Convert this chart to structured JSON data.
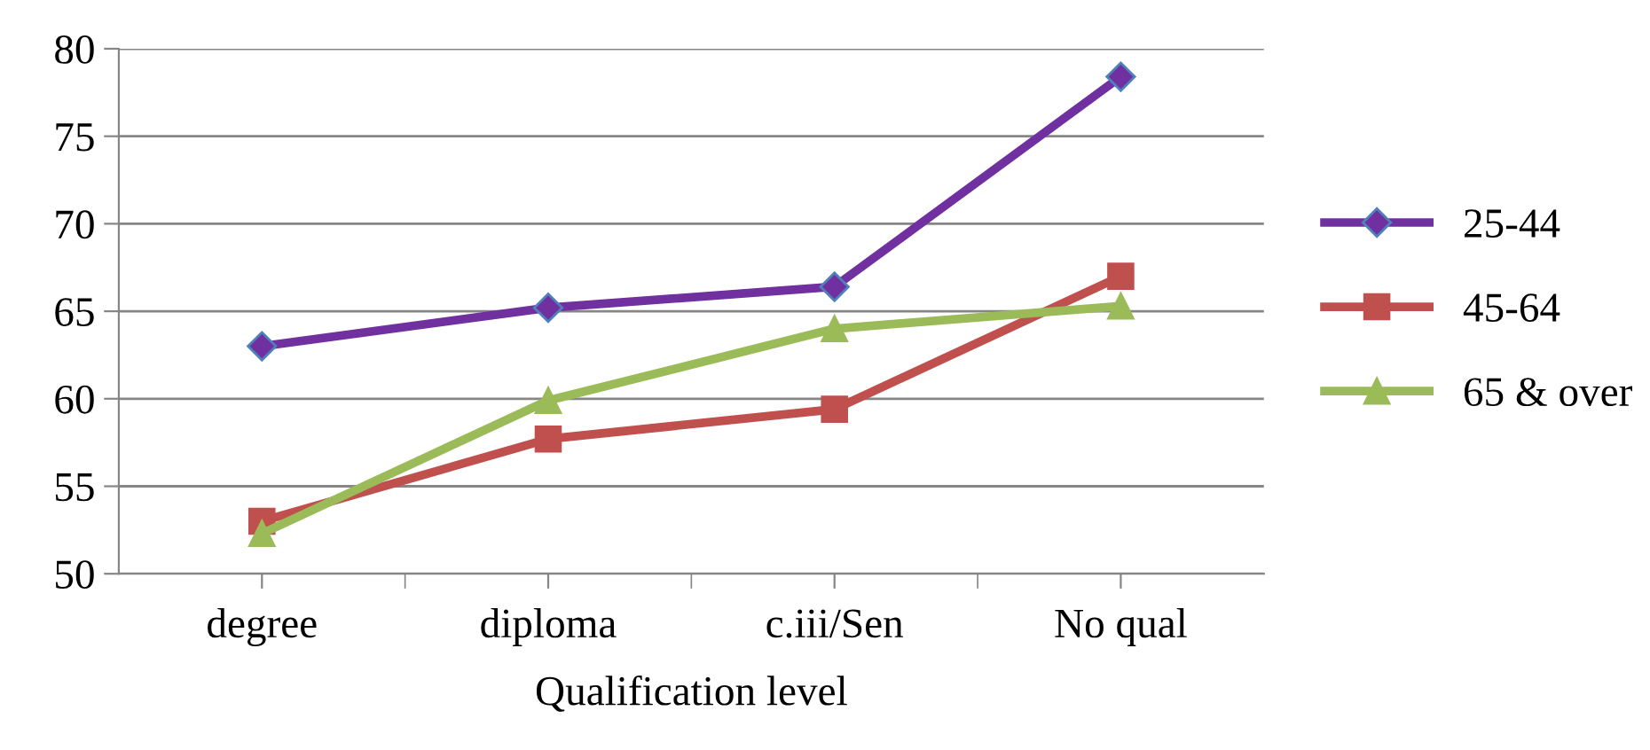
{
  "chart_data": {
    "type": "line",
    "xlabel": "Qualification level",
    "categories": [
      "degree",
      "diploma",
      "c.iii/Sen",
      "No qual"
    ],
    "series": [
      {
        "name": "25-44",
        "color": "#7030a0",
        "marker": "diamond",
        "values": [
          63.0,
          65.2,
          66.4,
          78.4
        ]
      },
      {
        "name": "45-64",
        "color": "#c0504d",
        "marker": "square",
        "values": [
          53.0,
          57.7,
          59.4,
          67.0
        ]
      },
      {
        "name": "65 & over",
        "color": "#9bbb59",
        "marker": "triangle",
        "values": [
          52.3,
          59.9,
          64.0,
          65.3
        ]
      }
    ],
    "ylim": [
      50,
      80
    ],
    "yticks": [
      50,
      55,
      60,
      65,
      70,
      75,
      80
    ],
    "grid": "y",
    "legend": "right"
  }
}
